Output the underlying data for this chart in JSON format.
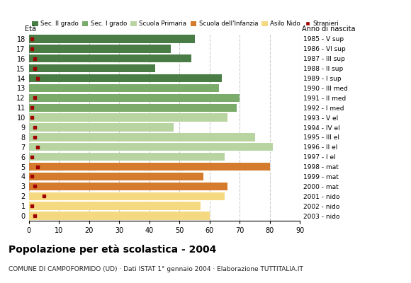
{
  "ages": [
    18,
    17,
    16,
    15,
    14,
    13,
    12,
    11,
    10,
    9,
    8,
    7,
    6,
    5,
    4,
    3,
    2,
    1,
    0
  ],
  "anni_nascita": [
    "1985 - V sup",
    "1986 - VI sup",
    "1987 - III sup",
    "1988 - II sup",
    "1989 - I sup",
    "1990 - III med",
    "1991 - II med",
    "1992 - I med",
    "1993 - V el",
    "1994 - IV el",
    "1995 - III el",
    "1996 - II el",
    "1997 - I el",
    "1998 - mat",
    "1999 - mat",
    "2000 - mat",
    "2001 - nido",
    "2002 - nido",
    "2003 - nido"
  ],
  "bar_values": [
    55,
    47,
    54,
    42,
    64,
    63,
    70,
    69,
    66,
    48,
    75,
    81,
    65,
    80,
    58,
    66,
    65,
    57,
    60
  ],
  "bar_colors": [
    "#4a7c46",
    "#4a7c46",
    "#4a7c46",
    "#4a7c46",
    "#4a7c46",
    "#7aab6a",
    "#7aab6a",
    "#7aab6a",
    "#b8d4a0",
    "#b8d4a0",
    "#b8d4a0",
    "#b8d4a0",
    "#b8d4a0",
    "#d47b2e",
    "#d47b2e",
    "#d47b2e",
    "#f5d980",
    "#f5d980",
    "#f5d980"
  ],
  "stranieri_values": [
    1,
    1,
    2,
    2,
    3,
    0,
    2,
    1,
    1,
    2,
    2,
    3,
    1,
    3,
    1,
    2,
    5,
    1,
    2
  ],
  "stranieri_color": "#a00000",
  "legend_labels": [
    "Sec. II grado",
    "Sec. I grado",
    "Scuola Primaria",
    "Scuola dell'Infanzia",
    "Asilo Nido",
    "Stranieri"
  ],
  "legend_colors": [
    "#4a7c46",
    "#7aab6a",
    "#b8d4a0",
    "#d47b2e",
    "#f5d980",
    "#a00000"
  ],
  "title": "Popolazione per età scolastica - 2004",
  "subtitle": "COMUNE DI CAMPOFORMIDO (UD) · Dati ISTAT 1° gennaio 2004 · Elaborazione TUTTITALIA.IT",
  "ylabel_left": "Età",
  "ylabel_right": "Anno di nascita",
  "xlim": [
    0,
    90
  ],
  "xticks": [
    0,
    10,
    20,
    30,
    40,
    50,
    60,
    70,
    80,
    90
  ],
  "background_color": "#ffffff",
  "bar_height": 0.82,
  "grid_color": "#cccccc"
}
